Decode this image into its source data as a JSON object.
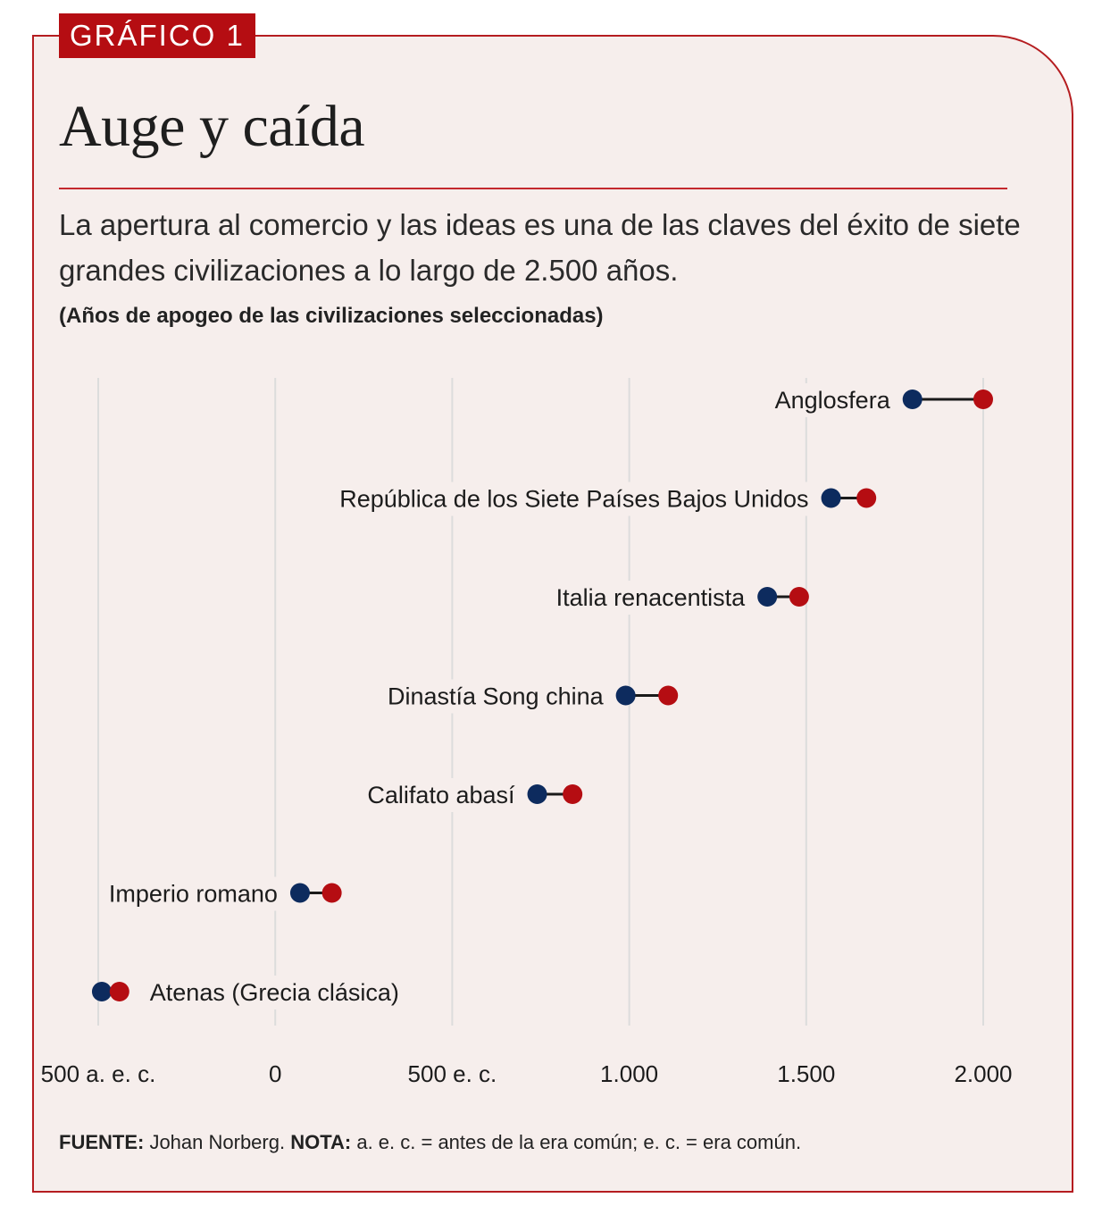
{
  "badge": "GRÁFICO 1",
  "title": "Auge y caída",
  "subtitle": "La apertura al comercio y las ideas es una de las claves del éxito de siete grandes civilizaciones a lo largo de 2.500 años.",
  "units_note": "(Años de apogeo de las civilizaciones seleccionadas)",
  "footer": {
    "source_label": "FUENTE:",
    "source_text": " Johan Norberg. ",
    "note_label": "NOTA:",
    "note_text": " a. e. c. = antes de la era común; e. c. = era común."
  },
  "colors": {
    "start": "#0d2b5e",
    "end": "#b50d12",
    "accent": "#b50d12",
    "grid": "#dcdcdc",
    "panel": "#f6eeec"
  },
  "chart_data": {
    "type": "dumbbell",
    "x_range": [
      -500,
      2000
    ],
    "ticks": [
      {
        "value": -500,
        "label": "500 a. e. c."
      },
      {
        "value": 0,
        "label": "0"
      },
      {
        "value": 500,
        "label": "500 e. c."
      },
      {
        "value": 1000,
        "label": "1.000"
      },
      {
        "value": 1500,
        "label": "1.500"
      },
      {
        "value": 2000,
        "label": "2.000"
      }
    ],
    "series": [
      {
        "name": "Anglosfera",
        "start": 1800,
        "end": 2000,
        "label_side": "left"
      },
      {
        "name": "República de los Siete Países Bajos Unidos",
        "start": 1570,
        "end": 1670,
        "label_side": "left"
      },
      {
        "name": "Italia renacentista",
        "start": 1390,
        "end": 1480,
        "label_side": "left"
      },
      {
        "name": "Dinastía Song china",
        "start": 990,
        "end": 1110,
        "label_side": "left"
      },
      {
        "name": "Califato abasí",
        "start": 740,
        "end": 840,
        "label_side": "left"
      },
      {
        "name": "Imperio romano",
        "start": 70,
        "end": 160,
        "label_side": "left"
      },
      {
        "name": "Atenas (Grecia clásica)",
        "start": -490,
        "end": -440,
        "label_side": "right"
      }
    ]
  }
}
